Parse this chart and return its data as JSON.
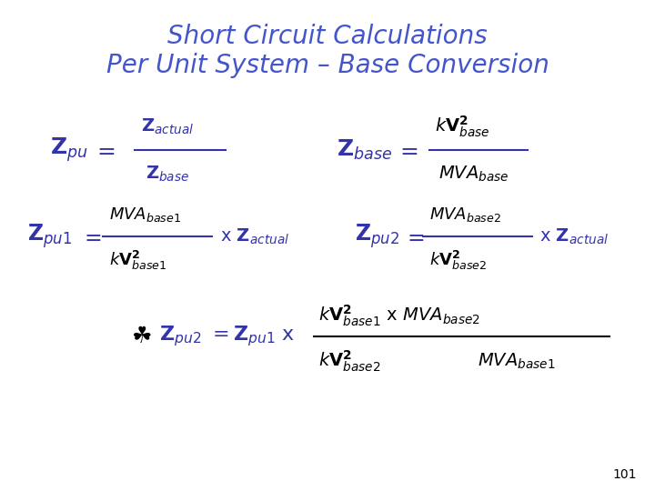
{
  "title_line1": "Short Circuit Calculations",
  "title_line2": "Per Unit System – Base Conversion",
  "title_color": "#4455cc",
  "bg_color": "#ffffff",
  "formula_color": "#000080",
  "formula_color2": "#3333aa",
  "page_number": "101",
  "title_fontsize": 20,
  "formula_fontsize": 16
}
